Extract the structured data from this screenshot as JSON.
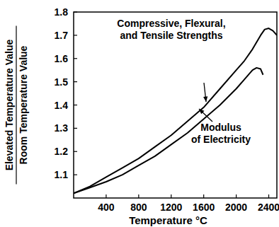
{
  "chart_data": {
    "type": "line",
    "x_label": "Temperature °C",
    "y_label": [
      "Elevated Temperature Value",
      "Room Temperature Value"
    ],
    "xlim": [
      0,
      2500
    ],
    "xticks": [
      400,
      800,
      1200,
      1600,
      2000,
      2400
    ],
    "ylim": [
      1.0,
      1.8
    ],
    "yticks": [
      1.1,
      1.2,
      1.3,
      1.4,
      1.5,
      1.6,
      1.7,
      1.8
    ],
    "grid": false,
    "annotations": [
      {
        "lines": [
          "Compressive, Flexural,",
          "and Tensile Strengths"
        ],
        "series": 0
      },
      {
        "lines": [
          "Modulus",
          "of Electricity"
        ],
        "series": 1
      }
    ],
    "series": [
      {
        "color": "#000000",
        "x": [
          0,
          200,
          400,
          600,
          800,
          1000,
          1200,
          1400,
          1600,
          1800,
          2000,
          2100,
          2200,
          2300,
          2350,
          2400,
          2450,
          2500
        ],
        "values": [
          1.02,
          1.05,
          1.09,
          1.13,
          1.17,
          1.22,
          1.27,
          1.33,
          1.39,
          1.47,
          1.55,
          1.59,
          1.64,
          1.7,
          1.725,
          1.73,
          1.72,
          1.7
        ]
      },
      {
        "color": "#000000",
        "x": [
          0,
          200,
          400,
          600,
          800,
          1000,
          1200,
          1400,
          1600,
          1800,
          2000,
          2100,
          2200,
          2250,
          2300,
          2330
        ],
        "values": [
          1.02,
          1.045,
          1.07,
          1.1,
          1.14,
          1.18,
          1.23,
          1.28,
          1.34,
          1.4,
          1.47,
          1.51,
          1.55,
          1.56,
          1.555,
          1.53
        ]
      }
    ]
  }
}
